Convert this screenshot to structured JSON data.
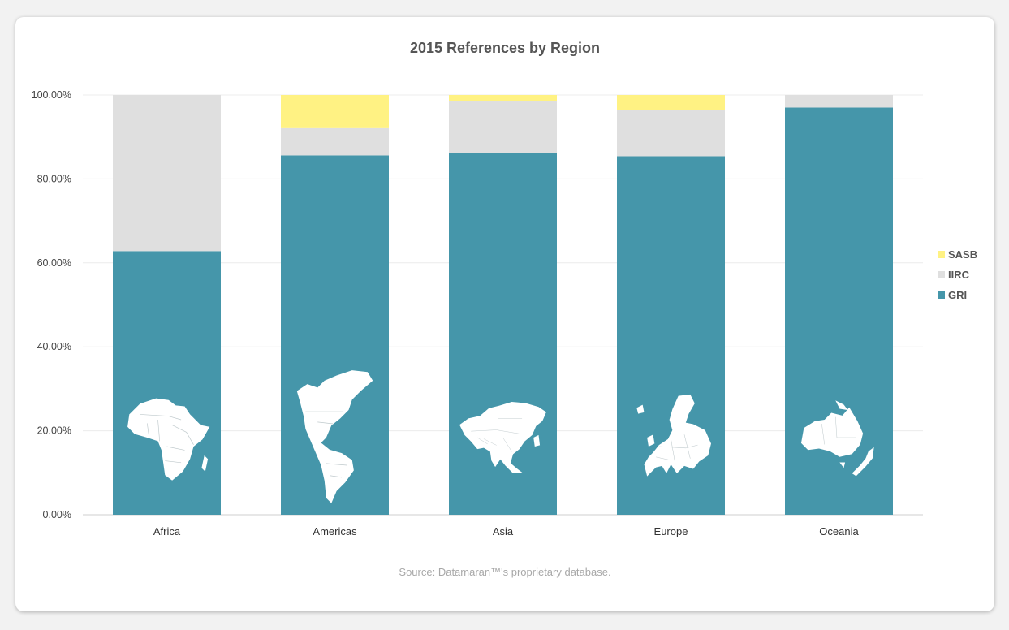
{
  "chart_data": {
    "type": "bar",
    "stacked": true,
    "title": "2015 References by Region",
    "categories": [
      "Africa",
      "Americas",
      "Asia",
      "Europe",
      "Oceania"
    ],
    "series": [
      {
        "name": "GRI",
        "color": "#4596aa",
        "values": [
          62.8,
          85.6,
          86.1,
          85.4,
          97.0
        ]
      },
      {
        "name": "IIRC",
        "color": "#dfdfdf",
        "values": [
          37.2,
          6.5,
          12.4,
          11.1,
          3.0
        ]
      },
      {
        "name": "SASB",
        "color": "#fff283",
        "values": [
          0.0,
          7.9,
          1.5,
          3.5,
          0.0
        ]
      }
    ],
    "ylim": [
      0,
      100
    ],
    "yticks": [
      "0.00%",
      "20.00%",
      "40.00%",
      "60.00%",
      "80.00%",
      "100.00%"
    ],
    "xlabel": "",
    "ylabel": "",
    "legend_position": "right",
    "grid": true,
    "bar_icons": [
      "africa-map-icon",
      "americas-map-icon",
      "asia-map-icon",
      "europe-map-icon",
      "oceania-map-icon"
    ]
  },
  "legend_items": [
    {
      "name": "SASB",
      "color": "#fff283"
    },
    {
      "name": "IIRC",
      "color": "#dfdfdf"
    },
    {
      "name": "GRI",
      "color": "#4596aa"
    }
  ],
  "source": "Source: Datamaran™'s proprietary database."
}
